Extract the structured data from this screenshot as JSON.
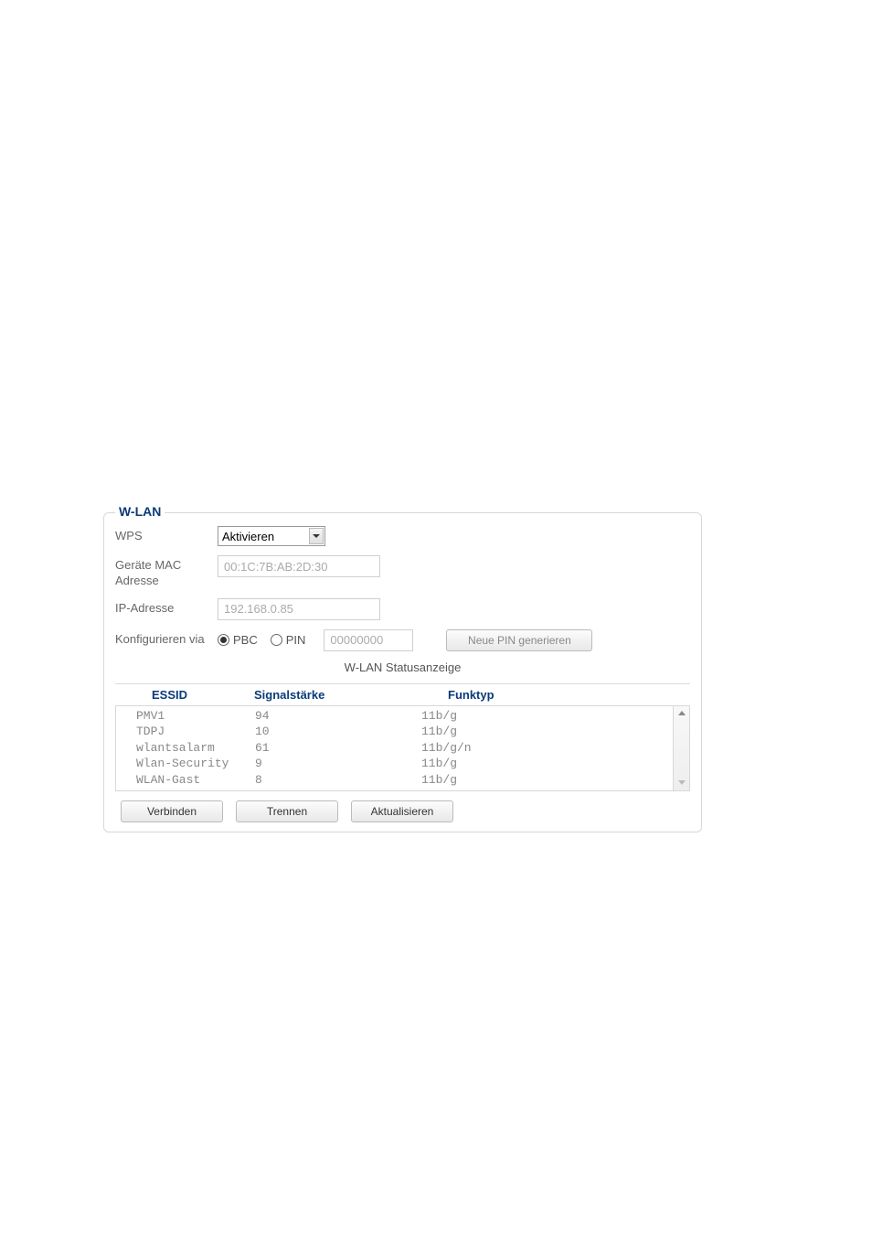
{
  "panel": {
    "title": "W-LAN",
    "title_color": "#0a3b7a",
    "border_color": "#d8d8d8",
    "text_color": "#555555"
  },
  "wps": {
    "label": "WPS",
    "selected": "Aktivieren"
  },
  "mac": {
    "label": "Geräte MAC Adresse",
    "value": "00:1C:7B:AB:2D:30"
  },
  "ip": {
    "label": "IP-Adresse",
    "value": "192.168.0.85"
  },
  "config": {
    "label": "Konfigurieren via",
    "options": [
      {
        "label": "PBC",
        "selected": true
      },
      {
        "label": "PIN",
        "selected": false
      }
    ],
    "pin_value": "00000000",
    "gen_button": "Neue PIN generieren"
  },
  "status": {
    "title": "W-LAN Statusanzeige",
    "columns": [
      "ESSID",
      "Signalstärke",
      "Funktyp"
    ],
    "rows": [
      {
        "essid": "PMV1",
        "signal": "94",
        "type": "11b/g"
      },
      {
        "essid": "TDPJ",
        "signal": "10",
        "type": "11b/g"
      },
      {
        "essid": "wlantsalarm",
        "signal": "61",
        "type": "11b/g/n"
      },
      {
        "essid": "Wlan-Security",
        "signal": "9",
        "type": "11b/g"
      },
      {
        "essid": "WLAN-Gast",
        "signal": "8",
        "type": "11b/g"
      }
    ]
  },
  "buttons": {
    "connect": "Verbinden",
    "disconnect": "Trennen",
    "refresh": "Aktualisieren"
  }
}
